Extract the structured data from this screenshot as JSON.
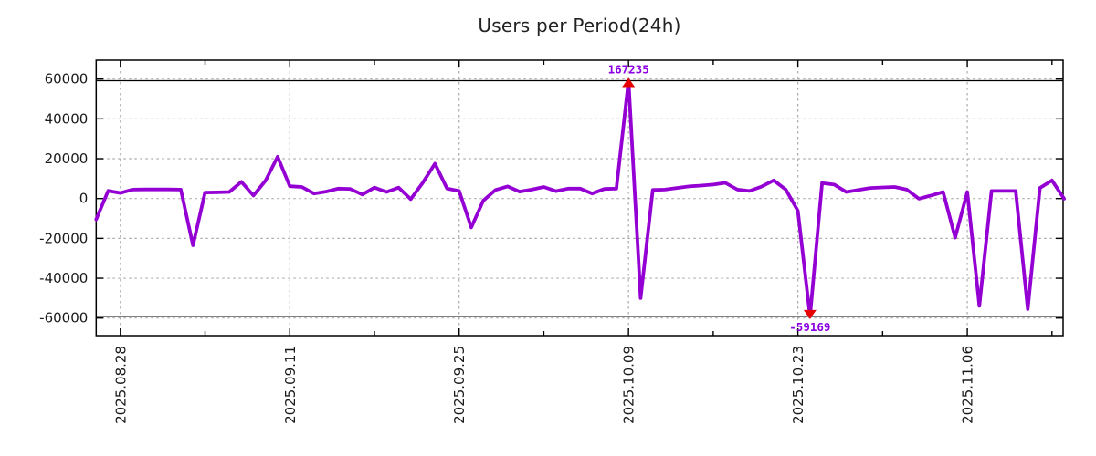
{
  "chart_data": {
    "type": "line",
    "title": "Users per Period(24h)",
    "grid": true,
    "legend": false,
    "colors": {
      "line": "#9400D3",
      "marker": "#e60000",
      "annotation": "#8a00e0",
      "grid": "#ababab",
      "axis": "#000000",
      "text": "#1a1a1a"
    },
    "ylim": [
      -68400,
      69500
    ],
    "yticks": [
      60000,
      40000,
      20000,
      0,
      -20000,
      -40000,
      -60000
    ],
    "clip_lines": [
      59169,
      -59169
    ],
    "x_axis": {
      "start_date": "2025.08.26",
      "interval_days": 1,
      "major_ticks": [
        {
          "day": 2,
          "label": "2025.08.28"
        },
        {
          "day": 16,
          "label": "2025.09.11"
        },
        {
          "day": 30,
          "label": "2025.09.25"
        },
        {
          "day": 44,
          "label": "2025.10.09"
        },
        {
          "day": 58,
          "label": "2025.10.23"
        },
        {
          "day": 72,
          "label": "2025.11.06"
        }
      ],
      "minor_tick_days": [
        9,
        23,
        37,
        51,
        65,
        79
      ]
    },
    "series": [
      {
        "name": "users-per-period",
        "values": [
          -10500,
          3900,
          2800,
          4500,
          4600,
          4600,
          4600,
          4500,
          -23500,
          3000,
          3100,
          3300,
          8400,
          1500,
          9000,
          21000,
          6200,
          5800,
          2500,
          3500,
          5000,
          4800,
          2000,
          5500,
          3300,
          5500,
          -300,
          8000,
          17500,
          5000,
          3800,
          -14500,
          -1000,
          4300,
          6100,
          3500,
          4500,
          5800,
          3700,
          5000,
          5000,
          2500,
          4800,
          5000,
          167235,
          -50000,
          4300,
          4500,
          5300,
          6100,
          6500,
          7000,
          7900,
          4500,
          3800,
          6000,
          9100,
          4500,
          -6200,
          -59169,
          7800,
          7000,
          3300,
          4300,
          5300,
          5600,
          5800,
          4500,
          -100,
          1500,
          3300,
          -19600,
          3300,
          -53900,
          3800,
          3800,
          3800,
          -55500,
          5300,
          9100,
          -100
        ]
      }
    ],
    "annotations": {
      "max": {
        "day": 44,
        "value": 167235,
        "label": "167235"
      },
      "min": {
        "day": 59,
        "value": -59169,
        "label": "-59169"
      }
    }
  }
}
